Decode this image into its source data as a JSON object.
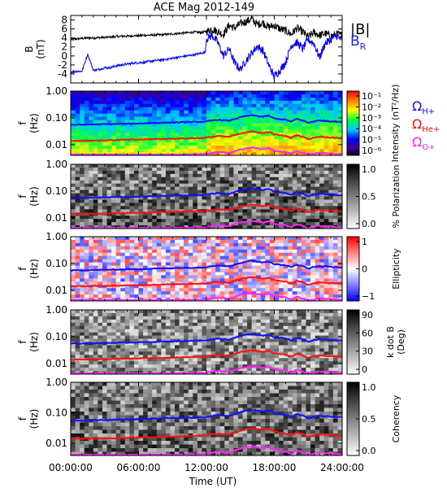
{
  "title": "ACE Mag 2012-149",
  "xlabel": "Time (UT)",
  "x_ticks": [
    "00:00:00",
    "06:00:00",
    "12:00:00",
    "18:00:00",
    "24:00:00"
  ],
  "chart_data": [
    {
      "type": "line",
      "panel": "B",
      "ylabel_line1": "B",
      "ylabel_line2": "(nT)",
      "xlim": [
        0,
        24
      ],
      "ylim": [
        -6,
        9
      ],
      "y_ticks": [
        "8",
        "6",
        "4",
        "2",
        "0",
        "-2",
        "-4"
      ],
      "legend": [
        "|B|",
        "B_R"
      ],
      "series": [
        {
          "name": "|B|",
          "color": "#000000",
          "x": [
            0,
            0.5,
            1,
            1.5,
            2,
            2.5,
            3,
            3.5,
            4,
            4.5,
            5,
            5.5,
            6,
            6.5,
            7,
            7.5,
            8,
            8.5,
            9,
            9.5,
            10,
            10.5,
            11,
            11.5,
            12,
            12.5,
            13,
            13.5,
            14,
            14.5,
            15,
            15.5,
            16,
            16.5,
            17,
            17.5,
            18,
            18.5,
            19,
            19.5,
            20,
            20.5,
            21,
            21.5,
            22,
            22.5,
            23,
            23.5,
            24
          ],
          "values": [
            3.6,
            3.8,
            3.9,
            4.0,
            4.0,
            4.1,
            4.1,
            4.2,
            4.3,
            4.4,
            4.4,
            4.5,
            4.5,
            4.6,
            4.6,
            4.7,
            4.7,
            4.8,
            4.9,
            5.0,
            5.1,
            5.2,
            5.3,
            5.2,
            5.4,
            6.0,
            5.4,
            4.8,
            6.8,
            6.2,
            7.2,
            7.6,
            8.2,
            7.0,
            7.4,
            6.4,
            6.8,
            6.0,
            5.6,
            4.8,
            6.2,
            5.4,
            4.2,
            5.2,
            4.6,
            5.0,
            4.4,
            4.8,
            4.6
          ]
        },
        {
          "name": "B_R",
          "color": "#0000ff",
          "x": [
            0,
            0.5,
            1,
            1.5,
            2,
            2.5,
            3,
            3.5,
            4,
            4.5,
            5,
            5.5,
            6,
            6.5,
            7,
            7.5,
            8,
            8.5,
            9,
            9.5,
            10,
            10.5,
            11,
            11.5,
            11.9,
            12,
            12.5,
            13,
            13.5,
            14,
            14.5,
            15,
            15.5,
            16,
            16.5,
            17,
            17.5,
            18,
            18.5,
            19,
            19.5,
            20,
            20.5,
            21,
            21.5,
            22,
            22.5,
            23,
            23.5,
            24
          ],
          "values": [
            -3.6,
            -3.4,
            -3.4,
            0.4,
            -3.2,
            -3.0,
            -2.6,
            -2.6,
            -2.2,
            -2.0,
            -1.8,
            -1.6,
            -1.5,
            -1.4,
            -1.2,
            -1.0,
            -0.9,
            -0.7,
            -0.5,
            -0.3,
            -0.1,
            0.1,
            0.3,
            0.6,
            0.8,
            3.8,
            4.6,
            3.0,
            0.0,
            1.6,
            -1.6,
            -3.0,
            -1.0,
            0.6,
            2.2,
            1.2,
            -2.0,
            -4.6,
            -3.2,
            -1.4,
            2.4,
            3.0,
            1.6,
            3.6,
            2.8,
            -0.4,
            2.8,
            3.6,
            4.6,
            3.4
          ]
        }
      ]
    },
    {
      "type": "heatmap",
      "panel": "Intensity",
      "ylabel_line1": "f",
      "ylabel_line2": "(Hz)",
      "ylim": [
        0.004,
        1.0
      ],
      "y_scale": "log",
      "y_ticks": [
        "1.00",
        "0.10",
        "0.01"
      ],
      "colorbar_label": "Intensity (nT²/Hz)",
      "colorbar_ticks": [
        "10⁻¹",
        "10⁻²",
        "10⁻³",
        "10⁻⁴",
        "10⁻⁵",
        "10⁻⁶"
      ],
      "colorbar_style": "rainbow",
      "legend": [
        "Ω_H+",
        "Ω_He+",
        "Ω_O+"
      ]
    },
    {
      "type": "heatmap",
      "panel": "% Polarization",
      "ylabel_line1": "f",
      "ylabel_line2": "(Hz)",
      "ylim": [
        0.004,
        1.0
      ],
      "y_scale": "log",
      "y_ticks": [
        "1.00",
        "0.10",
        "0.01"
      ],
      "colorbar_label": "% Polarization",
      "colorbar_ticks": [
        "1.0",
        "0.5",
        "0.0"
      ],
      "colorbar_style": "gray"
    },
    {
      "type": "heatmap",
      "panel": "Ellipticity",
      "ylabel_line1": "f",
      "ylabel_line2": "(Hz)",
      "ylim": [
        0.004,
        1.0
      ],
      "y_scale": "log",
      "y_ticks": [
        "1.00",
        "0.10",
        "0.01"
      ],
      "colorbar_label": "Ellipticity",
      "colorbar_ticks": [
        "1",
        "0",
        "−1"
      ],
      "colorbar_style": "redblue"
    },
    {
      "type": "heatmap",
      "panel": "k dot B",
      "ylabel_line1": "f",
      "ylabel_line2": "(Hz)",
      "ylim": [
        0.004,
        1.0
      ],
      "y_scale": "log",
      "y_ticks": [
        "1.00",
        "0.10",
        "0.01"
      ],
      "colorbar_label_line1": "k dot B",
      "colorbar_label_line2": "(Deg)",
      "colorbar_ticks": [
        "90",
        "60",
        "30",
        "0"
      ],
      "colorbar_style": "gray"
    },
    {
      "type": "heatmap",
      "panel": "Coherency",
      "ylabel_line1": "f",
      "ylabel_line2": "(Hz)",
      "ylim": [
        0.004,
        1.0
      ],
      "y_scale": "log",
      "y_ticks": [
        "1.00",
        "0.10",
        "0.01"
      ],
      "colorbar_label": "Coherency",
      "colorbar_ticks": [
        "1.0",
        "0.5",
        "0.0"
      ],
      "colorbar_style": "gray"
    }
  ],
  "gyrofrequency_lines": [
    {
      "name": "Ω_H+",
      "color": "#1010ff",
      "x": [
        0,
        3,
        6,
        9,
        11.9,
        12,
        13,
        14,
        15,
        15.5,
        16,
        17,
        17.5,
        18,
        19,
        19.5,
        20,
        20.5,
        21,
        21.5,
        22,
        23,
        24
      ],
      "values": [
        0.055,
        0.058,
        0.062,
        0.067,
        0.072,
        0.074,
        0.085,
        0.078,
        0.105,
        0.118,
        0.125,
        0.11,
        0.12,
        0.095,
        0.085,
        0.072,
        0.092,
        0.08,
        0.065,
        0.075,
        0.08,
        0.075,
        0.07
      ]
    },
    {
      "name": "Ω_He+",
      "color": "#ff1010",
      "x": [
        0,
        3,
        6,
        9,
        11.9,
        12,
        13,
        14,
        15,
        15.5,
        16,
        17,
        17.5,
        18,
        19,
        19.5,
        20,
        20.5,
        21,
        21.5,
        22,
        23,
        24
      ],
      "values": [
        0.014,
        0.0145,
        0.0155,
        0.0167,
        0.018,
        0.0185,
        0.021,
        0.0195,
        0.026,
        0.029,
        0.031,
        0.027,
        0.03,
        0.024,
        0.021,
        0.018,
        0.023,
        0.02,
        0.016,
        0.0185,
        0.02,
        0.0185,
        0.0175
      ]
    },
    {
      "name": "Ω_O+",
      "color": "#ff22ff",
      "x": [
        0,
        3,
        6,
        9,
        11.9,
        12,
        13,
        14,
        15,
        15.5,
        16,
        17,
        17.5,
        18,
        19,
        19.5,
        20,
        20.5,
        21,
        21.5,
        22,
        23,
        24
      ],
      "values": [
        0.0035,
        0.0036,
        0.0039,
        0.0042,
        0.0045,
        0.0046,
        0.0053,
        0.0049,
        0.0066,
        0.0073,
        0.0078,
        0.0068,
        0.0075,
        0.006,
        0.0053,
        0.0045,
        0.0058,
        0.005,
        0.0041,
        0.0046,
        0.005,
        0.0046,
        0.0044
      ]
    }
  ]
}
